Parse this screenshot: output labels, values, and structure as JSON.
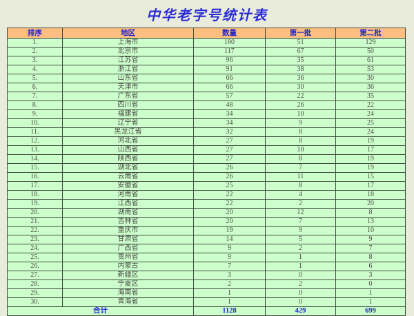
{
  "title": "中华老字号统计表",
  "table": {
    "headers": [
      "排序",
      "地区",
      "数量",
      "第一批",
      "第二批"
    ],
    "rows": [
      [
        "1.",
        "上海市",
        "180",
        "51",
        "129"
      ],
      [
        "2.",
        "北京市",
        "117",
        "67",
        "50"
      ],
      [
        "3.",
        "江苏省",
        "96",
        "35",
        "61"
      ],
      [
        "4.",
        "浙江省",
        "91",
        "38",
        "53"
      ],
      [
        "5.",
        "山东省",
        "66",
        "36",
        "30"
      ],
      [
        "6.",
        "天津市",
        "66",
        "30",
        "36"
      ],
      [
        "7.",
        "广东省",
        "57",
        "22",
        "35"
      ],
      [
        "8.",
        "四川省",
        "48",
        "26",
        "22"
      ],
      [
        "9.",
        "福建省",
        "34",
        "10",
        "24"
      ],
      [
        "10.",
        "辽宁省",
        "34",
        "9",
        "25"
      ],
      [
        "11.",
        "黑龙江省",
        "32",
        "8",
        "24"
      ],
      [
        "12.",
        "河北省",
        "27",
        "8",
        "19"
      ],
      [
        "13.",
        "山西省",
        "27",
        "10",
        "17"
      ],
      [
        "14.",
        "陕西省",
        "27",
        "8",
        "19"
      ],
      [
        "15.",
        "湖北省",
        "26",
        "7",
        "19"
      ],
      [
        "16.",
        "云南省",
        "26",
        "11",
        "15"
      ],
      [
        "17.",
        "安徽省",
        "25",
        "8",
        "17"
      ],
      [
        "18.",
        "河南省",
        "22",
        "4",
        "18"
      ],
      [
        "19.",
        "江西省",
        "22",
        "2",
        "20"
      ],
      [
        "20.",
        "湖南省",
        "20",
        "12",
        "8"
      ],
      [
        "21.",
        "吉林省",
        "20",
        "7",
        "13"
      ],
      [
        "22.",
        "重庆市",
        "19",
        "9",
        "10"
      ],
      [
        "23.",
        "甘肃省",
        "14",
        "5",
        "9"
      ],
      [
        "24.",
        "广西省",
        "9",
        "2",
        "7"
      ],
      [
        "25.",
        "贵州省",
        "9",
        "1",
        "8"
      ],
      [
        "26.",
        "内蒙古",
        "7",
        "1",
        "6"
      ],
      [
        "27.",
        "新疆区",
        "3",
        "0",
        "3"
      ],
      [
        "28.",
        "宁夏区",
        "2",
        "2",
        "0"
      ],
      [
        "29.",
        "海南省",
        "1",
        "0",
        "1"
      ],
      [
        "30.",
        "青海省",
        "1",
        "0",
        "1"
      ]
    ],
    "total": {
      "label": "合计",
      "quantity": "1128",
      "batch1": "429",
      "batch2": "699"
    }
  },
  "colors": {
    "page_bg": "#e9ecdb",
    "header_bg": "#fcbf7f",
    "row_bg": "#ccffcc",
    "border_color": "#3f4a3f",
    "title_color": "#2b2bd5",
    "accent_blue": "#2424cc",
    "data_color": "#4a4a45"
  }
}
